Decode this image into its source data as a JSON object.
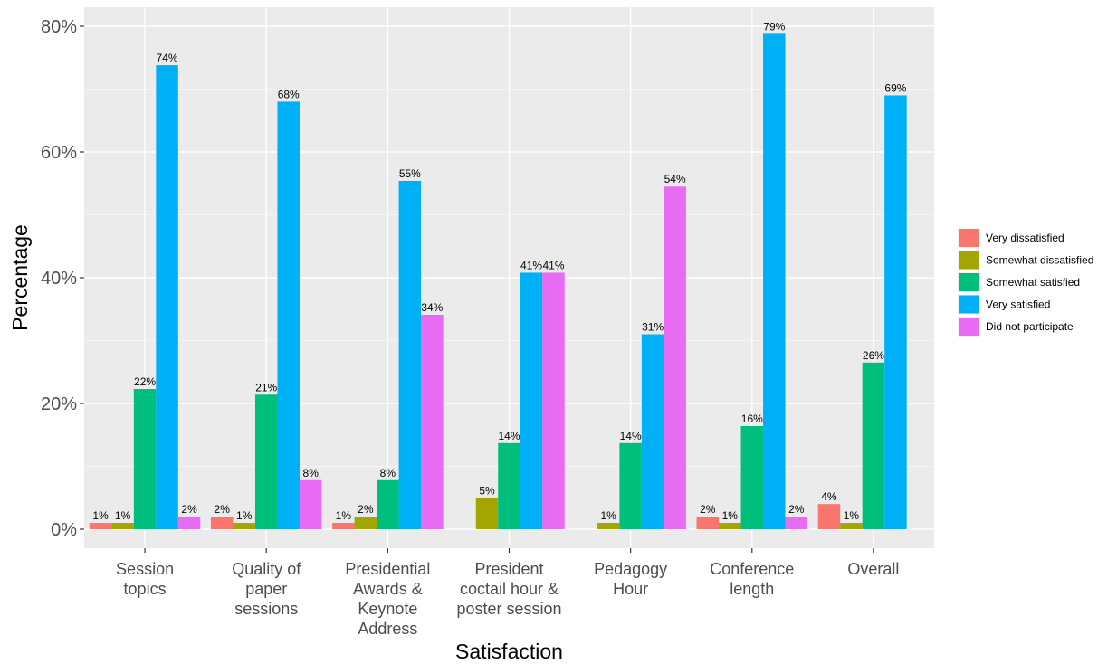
{
  "chart_data": {
    "type": "bar",
    "xlabel": "Satisfaction",
    "ylabel": "Percentage",
    "ylim": [
      0,
      81.5
    ],
    "yticks": [
      0,
      20,
      40,
      60,
      80
    ],
    "ytick_labels": [
      "0%",
      "20%",
      "40%",
      "60%",
      "80%"
    ],
    "grid": true,
    "legend_position": "right",
    "categories": [
      [
        "Session",
        "topics"
      ],
      [
        "Quality of",
        "paper",
        "sessions"
      ],
      [
        "Presidential",
        "Awards &",
        "Keynote",
        "Address"
      ],
      [
        "President",
        "coctail hour &",
        "poster session"
      ],
      [
        "Pedagogy",
        "Hour"
      ],
      [
        "Conference",
        "length"
      ],
      [
        "Overall"
      ]
    ],
    "series": [
      {
        "name": "Very dissatisfied",
        "color": "#F8766D",
        "values": [
          1,
          2,
          1,
          null,
          null,
          2,
          4
        ],
        "labels": [
          "1%",
          "2%",
          "1%",
          null,
          null,
          "2%",
          "4%"
        ]
      },
      {
        "name": "Somewhat dissatisfied",
        "color": "#A3A500",
        "values": [
          1,
          1,
          2,
          5,
          1,
          1,
          1
        ],
        "labels": [
          "1%",
          "1%",
          "2%",
          "5%",
          "1%",
          "1%",
          "1%"
        ]
      },
      {
        "name": "Somewhat satisfied",
        "color": "#00BF7D",
        "values": [
          22.3,
          21.4,
          7.8,
          13.7,
          13.7,
          16.4,
          26.5
        ],
        "labels": [
          "22%",
          "21%",
          "8%",
          "14%",
          "14%",
          "16%",
          "26%"
        ]
      },
      {
        "name": "Very satisfied",
        "color": "#00B0F6",
        "values": [
          73.8,
          68,
          55.4,
          40.8,
          31,
          78.8,
          69
        ],
        "labels": [
          "74%",
          "68%",
          "55%",
          "41%",
          "31%",
          "79%",
          "69%"
        ]
      },
      {
        "name": "Did not participate",
        "color": "#E76BF3",
        "values": [
          2,
          7.8,
          34.1,
          40.8,
          54.5,
          2,
          null
        ],
        "labels": [
          "2%",
          "8%",
          "34%",
          "41%",
          "54%",
          "2%",
          null
        ]
      }
    ]
  }
}
